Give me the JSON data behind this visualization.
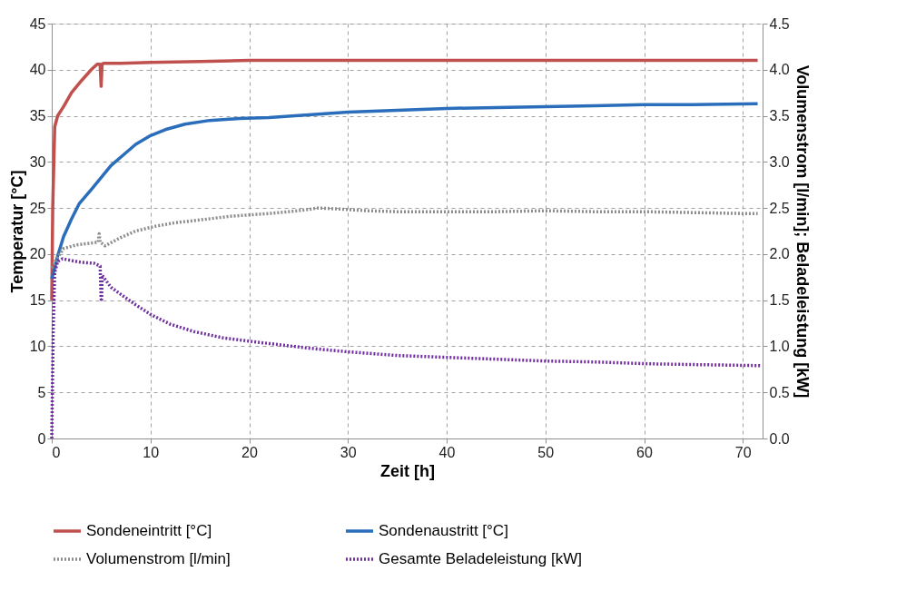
{
  "chart_data": {
    "type": "line",
    "xlabel": "Zeit [h]",
    "ylabel": "Temperatur [°C]",
    "y2label": "Volumenstrom [l/min]; Beladeleistung [kW]",
    "xlim": [
      0,
      72
    ],
    "xticks": [
      0,
      10,
      20,
      30,
      40,
      50,
      60,
      70
    ],
    "ylim": [
      0,
      45
    ],
    "yticks": [
      0,
      5,
      10,
      15,
      20,
      25,
      30,
      35,
      40,
      45
    ],
    "y2lim": [
      0,
      4.5
    ],
    "y2ticks": [
      {
        "value": 0,
        "label": "0.0"
      },
      {
        "value": 0.5,
        "label": "0.5"
      },
      {
        "value": 1,
        "label": "1.0"
      },
      {
        "value": 1.5,
        "label": "1.5"
      },
      {
        "value": 2,
        "label": "2.0"
      },
      {
        "value": 2.5,
        "label": "2.5"
      },
      {
        "value": 3,
        "label": "3.0"
      },
      {
        "value": 3.5,
        "label": "3.5"
      },
      {
        "value": 4,
        "label": "4.0"
      },
      {
        "value": 4.5,
        "label": "4.5"
      }
    ],
    "grid": true,
    "legend": "bottom",
    "series": [
      {
        "name": "Sondeneintritt [°C]",
        "color": "#c0504d",
        "line_style": "solid",
        "x": [
          0,
          0.1,
          0.3,
          0.6,
          1.2,
          2,
          3,
          4,
          4.6,
          4.9,
          5.0,
          5.1,
          5.3,
          7,
          10,
          15,
          20,
          30,
          40,
          50,
          60,
          71.5
        ],
        "values": [
          15,
          25,
          33.8,
          35,
          36,
          37.5,
          38.8,
          40,
          40.6,
          40.6,
          38.2,
          40.6,
          40.7,
          40.7,
          40.8,
          40.9,
          41,
          41,
          41,
          41,
          41,
          41
        ]
      },
      {
        "name": "Sondenaustritt [°C]",
        "color": "#2a6ebb",
        "line_style": "solid",
        "x": [
          0,
          0.3,
          0.6,
          1.2,
          2,
          2.8,
          4,
          5,
          6,
          7.3,
          8.5,
          9.9,
          11.5,
          13.5,
          16,
          19,
          22,
          26,
          30,
          35,
          40,
          45,
          50,
          55,
          60,
          65,
          71.5
        ],
        "values": [
          17.3,
          18.5,
          19.8,
          21.9,
          23.8,
          25.5,
          27,
          28.3,
          29.6,
          30.8,
          31.9,
          32.8,
          33.5,
          34.1,
          34.5,
          34.7,
          34.8,
          35.1,
          35.4,
          35.6,
          35.8,
          35.9,
          36,
          36.1,
          36.2,
          36.2,
          36.3
        ]
      },
      {
        "name": "Volumenstrom [l/min]",
        "color": "#8c8c8c",
        "line_style": "dotted",
        "axis": "y2",
        "x": [
          0,
          0.5,
          1.2,
          2.5,
          4,
          4.7,
          4.8,
          4.9,
          5.4,
          7,
          8.5,
          10.4,
          12.5,
          15,
          18,
          22,
          25,
          27,
          29,
          32,
          35,
          40,
          45,
          50,
          55,
          60,
          65,
          70,
          71.5
        ],
        "values": [
          1.85,
          1.95,
          2.06,
          2.1,
          2.12,
          2.13,
          2.22,
          2.13,
          2.09,
          2.18,
          2.25,
          2.3,
          2.34,
          2.37,
          2.41,
          2.44,
          2.47,
          2.5,
          2.49,
          2.47,
          2.46,
          2.46,
          2.46,
          2.47,
          2.46,
          2.46,
          2.45,
          2.44,
          2.44
        ]
      },
      {
        "name": "Gesamte Beladeleistung [kW]",
        "color": "#7030a0",
        "line_style": "dotted",
        "axis": "y2",
        "x": [
          0,
          0.15,
          0.3,
          0.6,
          1.1,
          2,
          3,
          4.3,
          4.9,
          5.0,
          5.05,
          5.1,
          6,
          7.3,
          8.5,
          10.1,
          12,
          14.4,
          17.4,
          22,
          26,
          30,
          35,
          40,
          45,
          50,
          55,
          60.5,
          66,
          71.8
        ],
        "values": [
          0,
          1.2,
          1.8,
          1.92,
          1.95,
          1.93,
          1.91,
          1.9,
          1.87,
          1.51,
          1.51,
          1.77,
          1.64,
          1.54,
          1.45,
          1.34,
          1.24,
          1.16,
          1.09,
          1.03,
          0.98,
          0.94,
          0.9,
          0.88,
          0.86,
          0.84,
          0.83,
          0.81,
          0.8,
          0.79
        ]
      }
    ]
  }
}
